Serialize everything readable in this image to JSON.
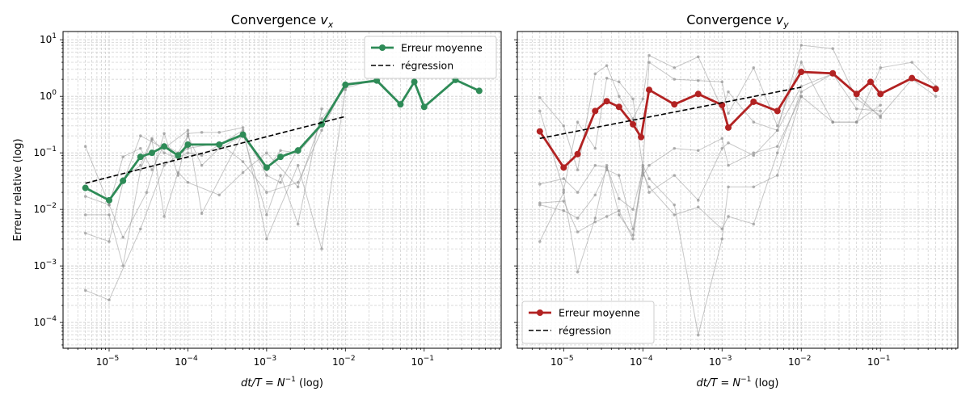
{
  "chart_data": [
    {
      "type": "line",
      "title": "Convergence v_x",
      "title_text": "Convergence ",
      "title_var": "v",
      "title_sub": "x",
      "xlabel": "dt/T = N^-1 (log)",
      "ylabel": "Erreur relative (log)",
      "xscale": "log",
      "yscale": "log",
      "xlim": [
        2.6e-06,
        0.95
      ],
      "ylim": [
        3.5e-05,
        14
      ],
      "xticks": [
        {
          "value": 1e-05,
          "label": "10^-5"
        },
        {
          "value": 0.0001,
          "label": "10^-4"
        },
        {
          "value": 0.001,
          "label": "10^-3"
        },
        {
          "value": 0.01,
          "label": "10^-2"
        },
        {
          "value": 0.1,
          "label": "10^-1"
        }
      ],
      "yticks": [
        {
          "value": 0.0001,
          "label": "10^-4"
        },
        {
          "value": 0.001,
          "label": "10^-3"
        },
        {
          "value": 0.01,
          "label": "10^-2"
        },
        {
          "value": 0.1,
          "label": "10^-1"
        },
        {
          "value": 1,
          "label": "10^0"
        },
        {
          "value": 10,
          "label": "10^1"
        }
      ],
      "grid": true,
      "legend_position": "top-right",
      "mean_color": "#2e8b57",
      "series": [
        {
          "name": "Erreur moyenne",
          "x": [
            5e-06,
            1e-05,
            1.5e-05,
            2.5e-05,
            3.5e-05,
            5e-05,
            7.5e-05,
            0.0001,
            0.00025,
            0.0005,
            0.001,
            0.0015,
            0.0025,
            0.005,
            0.01,
            0.025,
            0.05,
            0.075,
            0.1,
            0.25,
            0.5
          ],
          "y": [
            0.024,
            0.0145,
            0.032,
            0.085,
            0.1,
            0.13,
            0.09,
            0.14,
            0.14,
            0.21,
            0.055,
            0.085,
            0.11,
            0.32,
            1.6,
            1.9,
            0.72,
            1.8,
            0.65,
            1.95,
            1.25
          ]
        },
        {
          "name": "régression",
          "x": [
            5e-06,
            0.01
          ],
          "y": [
            0.029,
            0.44
          ]
        }
      ],
      "background_series": [
        {
          "name": "",
          "x": [
            5e-06,
            1e-05,
            2.5e-05,
            5e-05,
            0.0001,
            0.00025,
            0.0005,
            0.001,
            0.0025,
            0.005,
            0.01,
            0.025
          ],
          "y": [
            0.00037,
            0.00025,
            0.0045,
            0.06,
            0.12,
            0.15,
            0.07,
            0.02,
            0.03,
            0.25,
            1.7,
            1.9
          ]
        },
        {
          "name": "",
          "x": [
            5e-06,
            1e-05,
            1.5e-05,
            2.5e-05,
            5e-05,
            0.0001,
            0.00015,
            0.0005,
            0.001,
            0.0015,
            0.0025,
            0.005
          ],
          "y": [
            0.0038,
            0.0027,
            0.03,
            0.2,
            0.12,
            0.25,
            0.0085,
            0.22,
            0.008,
            0.04,
            0.0055,
            0.6
          ]
        },
        {
          "name": "",
          "x": [
            5e-06,
            1e-05,
            1.5e-05,
            3e-05,
            5e-05,
            7.5e-05,
            0.0001,
            0.00015,
            0.00025,
            0.0005,
            0.001,
            0.0025,
            0.005,
            0.01
          ],
          "y": [
            0.13,
            0.012,
            0.0032,
            0.02,
            0.22,
            0.04,
            0.22,
            0.23,
            0.23,
            0.28,
            0.003,
            0.06,
            0.002,
            1.3
          ]
        },
        {
          "name": "",
          "x": [
            5e-06,
            1e-05,
            1.5e-05,
            2.5e-05,
            3.5e-05,
            5e-05,
            7.5e-05,
            0.0001,
            0.00025,
            0.0005,
            0.001,
            0.0025,
            0.005,
            0.01,
            0.025,
            0.05
          ],
          "y": [
            0.008,
            0.008,
            0.001,
            0.05,
            0.17,
            0.0075,
            0.045,
            0.03,
            0.018,
            0.045,
            0.1,
            0.025,
            0.4,
            1.4,
            2.0,
            0.75
          ]
        },
        {
          "name": "",
          "x": [
            5e-06,
            1e-05,
            1.5e-05,
            2.5e-05,
            3.5e-05,
            5e-05,
            7.5e-05,
            0.0001,
            0.00015,
            0.00025,
            0.0005,
            0.001,
            0.0015,
            0.0025,
            0.005,
            0.01,
            0.025,
            0.05,
            0.075,
            0.1
          ],
          "y": [
            0.017,
            0.012,
            0.085,
            0.12,
            0.05,
            0.14,
            0.1,
            0.2,
            0.06,
            0.12,
            0.2,
            0.05,
            0.11,
            0.1,
            0.3,
            1.6,
            1.8,
            0.7,
            1.7,
            0.65
          ]
        },
        {
          "name": "",
          "x": [
            1e-05,
            1.5e-05,
            2.5e-05,
            3.5e-05,
            5e-05,
            7.5e-05,
            0.0001,
            0.00015,
            0.0005,
            0.001,
            0.0015,
            0.0025
          ],
          "y": [
            0.015,
            0.035,
            0.06,
            0.18,
            0.1,
            0.08,
            0.1,
            0.09,
            0.25,
            0.04,
            0.03,
            0.12
          ]
        }
      ]
    },
    {
      "type": "line",
      "title": "Convergence v_y",
      "title_text": "Convergence ",
      "title_var": "v",
      "title_sub": "y",
      "xlabel": "dt/T = N^-1 (log)",
      "ylabel": "",
      "xscale": "log",
      "yscale": "log",
      "xlim": [
        2.6e-06,
        0.95
      ],
      "ylim": [
        3.5e-05,
        14
      ],
      "xticks": [
        {
          "value": 1e-05,
          "label": "10^-5"
        },
        {
          "value": 0.0001,
          "label": "10^-4"
        },
        {
          "value": 0.001,
          "label": "10^-3"
        },
        {
          "value": 0.01,
          "label": "10^-2"
        },
        {
          "value": 0.1,
          "label": "10^-1"
        }
      ],
      "yticks": [],
      "grid": true,
      "legend_position": "bottom-left",
      "mean_color": "#b22222",
      "series": [
        {
          "name": "Erreur moyenne",
          "x": [
            5e-06,
            1e-05,
            1.5e-05,
            2.5e-05,
            3.5e-05,
            5e-05,
            7.5e-05,
            9.5e-05,
            0.00012,
            0.00025,
            0.0005,
            0.001,
            0.0012,
            0.0025,
            0.005,
            0.01,
            0.025,
            0.05,
            0.075,
            0.1,
            0.25,
            0.5
          ],
          "y": [
            0.24,
            0.055,
            0.095,
            0.55,
            0.82,
            0.65,
            0.32,
            0.19,
            1.3,
            0.72,
            1.1,
            0.7,
            0.28,
            0.8,
            0.55,
            2.7,
            2.55,
            1.1,
            1.8,
            1.1,
            2.1,
            1.35
          ]
        },
        {
          "name": "régression",
          "x": [
            5e-06,
            0.01
          ],
          "y": [
            0.18,
            1.45
          ]
        }
      ],
      "background_series": [
        {
          "name": "",
          "x": [
            5e-06,
            1e-05,
            1.5e-05,
            2.5e-05,
            3.5e-05,
            5e-05,
            7.5e-05,
            0.0001,
            0.00012,
            0.00025,
            0.0005,
            0.001,
            0.0012,
            0.0025,
            0.005,
            0.01,
            0.025,
            0.05,
            0.1,
            0.25,
            0.5
          ],
          "y": [
            0.95,
            0.3,
            0.05,
            2.5,
            3.5,
            1.0,
            0.4,
            0.9,
            5.3,
            3.2,
            5.0,
            0.6,
            1.2,
            0.35,
            0.25,
            8.0,
            7.0,
            0.9,
            0.45,
            2.0,
            1.0
          ]
        },
        {
          "name": "",
          "x": [
            5e-06,
            1e-05,
            1.5e-05,
            2.5e-05,
            3.5e-05,
            5e-05,
            7.5e-05,
            0.0001,
            0.00012,
            0.00025,
            0.0005,
            0.001,
            0.0012,
            0.0025,
            0.005,
            0.01,
            0.025,
            0.05,
            0.1,
            0.25,
            0.5
          ],
          "y": [
            0.55,
            0.022,
            0.35,
            0.12,
            2.1,
            1.8,
            0.9,
            0.055,
            4.0,
            2.0,
            1.9,
            1.8,
            0.5,
            3.2,
            0.3,
            4.0,
            0.35,
            0.35,
            3.2,
            4.0,
            1.5
          ]
        },
        {
          "name": "",
          "x": [
            5e-06,
            1e-05,
            1.5e-05,
            2.5e-05,
            3.5e-05,
            5e-05,
            7.5e-05,
            0.0001,
            0.00012,
            0.00025,
            0.0005,
            0.001,
            0.0012,
            0.0025,
            0.005,
            0.01
          ],
          "y": [
            0.0027,
            0.02,
            0.00078,
            0.007,
            0.06,
            0.008,
            0.0035,
            0.06,
            0.035,
            0.012,
            6e-05,
            0.003,
            0.025,
            0.025,
            0.04,
            1.0
          ]
        },
        {
          "name": "",
          "x": [
            5e-06,
            1e-05,
            1.5e-05,
            2.5e-05,
            3.5e-05,
            5e-05,
            7.5e-05,
            0.0001,
            0.00012,
            0.00025,
            0.0005,
            0.001,
            0.0012,
            0.0025,
            0.005,
            0.01,
            0.025,
            0.05,
            0.1
          ],
          "y": [
            0.013,
            0.014,
            0.004,
            0.006,
            0.0075,
            0.0095,
            0.003,
            0.045,
            0.025,
            0.008,
            0.011,
            0.0045,
            0.0075,
            0.0055,
            0.1,
            1.2,
            2.5,
            0.6,
            0.55
          ]
        },
        {
          "name": "",
          "x": [
            5e-06,
            1e-05,
            1.5e-05,
            2.5e-05,
            3.5e-05,
            5e-05,
            7.5e-05,
            0.0001,
            0.00012,
            0.00025,
            0.0005,
            0.001,
            0.0012,
            0.0025,
            0.005,
            0.01,
            0.025,
            0.05,
            0.1
          ],
          "y": [
            0.028,
            0.035,
            0.02,
            0.06,
            0.055,
            0.0155,
            0.01,
            0.05,
            0.02,
            0.04,
            0.0145,
            0.12,
            0.15,
            0.09,
            0.25,
            1.5,
            2.5,
            1.1,
            0.42
          ]
        },
        {
          "name": "",
          "x": [
            5e-06,
            1e-05,
            1.5e-05,
            2.5e-05,
            3.5e-05,
            5e-05,
            7.5e-05,
            0.0001,
            0.00012,
            0.00025,
            0.0005,
            0.001,
            0.0012,
            0.0025,
            0.005,
            0.01,
            0.025,
            0.05,
            0.1
          ],
          "y": [
            0.012,
            0.0095,
            0.007,
            0.018,
            0.05,
            0.04,
            0.0045,
            0.04,
            0.06,
            0.12,
            0.11,
            0.18,
            0.06,
            0.1,
            0.13,
            1.0,
            0.35,
            0.35,
            0.7
          ]
        }
      ]
    }
  ]
}
